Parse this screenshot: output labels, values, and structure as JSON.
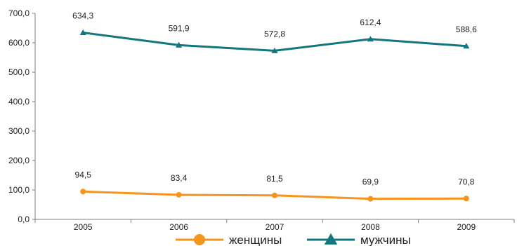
{
  "chart_data": {
    "type": "line",
    "categories": [
      "2005",
      "2006",
      "2007",
      "2008",
      "2009"
    ],
    "series": [
      {
        "name": "женщины",
        "values": [
          94.5,
          83.4,
          81.5,
          69.9,
          70.8
        ],
        "labels": [
          "94,5",
          "83,4",
          "81,5",
          "69,9",
          "70,8"
        ],
        "color": "#f7941d",
        "marker": "circle"
      },
      {
        "name": "мужчины",
        "values": [
          634.3,
          591.9,
          572.8,
          612.4,
          588.6
        ],
        "labels": [
          "634,3",
          "591,9",
          "572,8",
          "612,4",
          "588,6"
        ],
        "color": "#12787e",
        "marker": "triangle"
      }
    ],
    "yticks": [
      0,
      100,
      200,
      300,
      400,
      500,
      600,
      700
    ],
    "ytick_labels": [
      "0,0",
      "100,0",
      "200,0",
      "300,0",
      "400,0",
      "500,0",
      "600,0",
      "700,0"
    ],
    "ylim": [
      0,
      700
    ],
    "grid": false,
    "legend_position": "bottom-center",
    "title": "",
    "xlabel": "",
    "ylabel": ""
  }
}
